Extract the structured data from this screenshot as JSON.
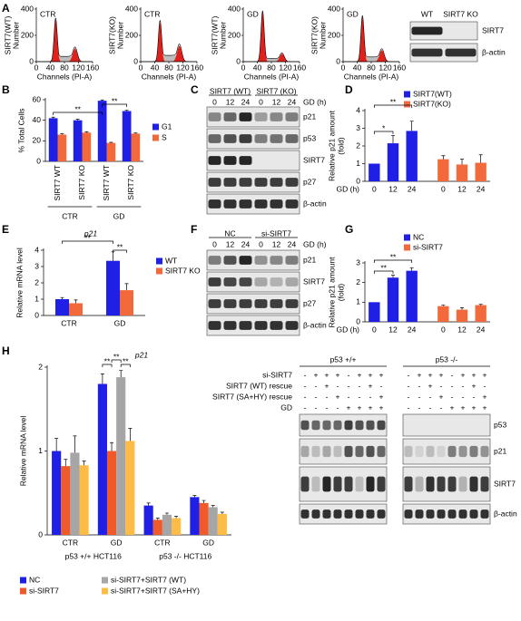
{
  "panel_labels": [
    "A",
    "B",
    "C",
    "D",
    "E",
    "F",
    "G",
    "H"
  ],
  "histograms": [
    {
      "condition": "CTR",
      "ylabel": [
        "SIRT7(WT)",
        "Number"
      ],
      "xlabel": "Channels (PI-A)",
      "xticks": [
        0,
        40,
        80,
        120,
        160
      ],
      "yticks": [
        0,
        200,
        400
      ]
    },
    {
      "condition": "CTR",
      "ylabel": [
        "SIRT7(KO)",
        "Number"
      ],
      "xlabel": "Channels (PI-A)",
      "xticks": [
        0,
        40,
        80,
        120,
        160
      ],
      "yticks": [
        0,
        200,
        400
      ]
    },
    {
      "condition": "GD",
      "ylabel": [
        "SIRT7(WT)",
        "Number"
      ],
      "xlabel": "Channels (PI-A)",
      "xticks": [
        0,
        40,
        80,
        120,
        160
      ],
      "yticks": [
        0,
        200,
        400
      ]
    },
    {
      "condition": "GD",
      "ylabel": [
        "SIRT7(KO)",
        "Number"
      ],
      "xlabel": "Channels (PI-A)",
      "xticks": [
        0,
        40,
        80,
        120,
        160
      ],
      "yticks": [
        0,
        200,
        400
      ]
    }
  ],
  "blot_a": {
    "lanes": [
      "WT",
      "SIRT7 KO"
    ],
    "rows": [
      "SIRT7",
      "β-actin"
    ]
  },
  "blot_c": {
    "groups": [
      "SIRT7 (WT)",
      "SIRT7 (KO)"
    ],
    "lanes": [
      0,
      12,
      24,
      0,
      12,
      24
    ],
    "axis_label": "GD (h)",
    "rows": [
      "p21",
      "p53",
      "SIRT7",
      "p27",
      "β-actin"
    ]
  },
  "blot_f": {
    "groups": [
      "NC",
      "si-SIRT7"
    ],
    "lanes": [
      0,
      12,
      24,
      0,
      12,
      24
    ],
    "axis_label": "GD (h)",
    "rows": [
      "p21",
      "SIRT7",
      "p27",
      "β-actin"
    ]
  },
  "blot_h": {
    "groups": [
      "p53 +/+",
      "p53 -/-"
    ],
    "conditions": [
      {
        "label": "si-SIRT7",
        "signs": [
          "-",
          "+",
          "+",
          "+",
          "-",
          "+",
          "+",
          "+",
          "-",
          "+",
          "+",
          "+",
          "-",
          "+",
          "+",
          "+"
        ]
      },
      {
        "label": "SIRT7 (WT) rescue",
        "signs": [
          "-",
          "-",
          "+",
          "-",
          "-",
          "-",
          "+",
          "-",
          "-",
          "-",
          "+",
          "-",
          "-",
          "-",
          "+",
          "-"
        ]
      },
      {
        "label": "SIRT7 (SA+HY) rescue",
        "signs": [
          "-",
          "-",
          "-",
          "+",
          "-",
          "-",
          "-",
          "+",
          "-",
          "-",
          "-",
          "+",
          "-",
          "-",
          "-",
          "+"
        ]
      },
      {
        "label": "GD",
        "signs": [
          "-",
          "-",
          "-",
          "-",
          "+",
          "+",
          "+",
          "+",
          "-",
          "-",
          "-",
          "-",
          "+",
          "+",
          "+",
          "+"
        ]
      }
    ],
    "rows": [
      "p53",
      "p21",
      "SIRT7",
      "β-actin"
    ]
  },
  "chart_data": [
    {
      "type": "bar",
      "ylabel": [
        "% Total Cells"
      ],
      "categories": [
        "SIRT7 WT",
        "SIRT7 KO",
        "SIRT7 WT",
        "SIRT7 KO"
      ],
      "groups": [
        "CTR",
        "GD"
      ],
      "ylim": [
        0,
        60
      ],
      "yticks": [
        0,
        20,
        40,
        60
      ],
      "annotations": [
        "**",
        "**"
      ],
      "series": [
        {
          "name": "G1",
          "color": "#1f1fe6",
          "values": [
            42,
            40,
            59,
            49
          ],
          "errors": [
            1,
            1,
            0.8,
            0.8
          ]
        },
        {
          "name": "S",
          "color": "#f26a3c",
          "values": [
            26,
            28,
            18,
            27
          ],
          "errors": [
            0.8,
            0.8,
            0.5,
            0.6
          ]
        }
      ]
    },
    {
      "type": "bar",
      "ylabel": [
        "Relative p21 amount",
        "(fold)"
      ],
      "xlabel": "GD (h)",
      "categories": [
        "0",
        "12",
        "24",
        "0",
        "12",
        "24"
      ],
      "ylim": [
        0,
        4
      ],
      "yticks": [
        0,
        1,
        2,
        3,
        4
      ],
      "annotations": [
        "*",
        "**"
      ],
      "series": [
        {
          "name": "SIRT7(WT)",
          "color": "#1f1fe6",
          "values": [
            1,
            2.15,
            2.85,
            null,
            null,
            null
          ],
          "errors": [
            null,
            0.45,
            0.55,
            null,
            null,
            null
          ]
        },
        {
          "name": "SIRT7(KO)",
          "color": "#f26a3c",
          "values": [
            null,
            null,
            null,
            1.25,
            0.95,
            1.05
          ],
          "errors": [
            null,
            null,
            null,
            0.2,
            0.3,
            0.45
          ]
        }
      ]
    },
    {
      "type": "bar",
      "title": "p21",
      "ylabel": [
        "Relative mRNA level"
      ],
      "categories": [
        "CTR",
        "GD"
      ],
      "ylim": [
        0,
        4
      ],
      "yticks": [
        0,
        1,
        2,
        3,
        4
      ],
      "annotations": [
        "**",
        "**"
      ],
      "series": [
        {
          "name": "WT",
          "color": "#1f1fe6",
          "values": [
            1.0,
            3.35
          ],
          "errors": [
            0.1,
            0.55
          ]
        },
        {
          "name": "SIRT7 KO",
          "color": "#f26a3c",
          "values": [
            0.75,
            1.55
          ],
          "errors": [
            0.2,
            0.4
          ]
        }
      ]
    },
    {
      "type": "bar",
      "ylabel": [
        "Relative p21 amount",
        "(fold)"
      ],
      "xlabel": "GD (h)",
      "categories": [
        "0",
        "12",
        "24",
        "0",
        "12",
        "24"
      ],
      "ylim": [
        0,
        3
      ],
      "yticks": [
        0,
        1,
        2,
        3
      ],
      "annotations": [
        "**",
        "**"
      ],
      "series": [
        {
          "name": "NC",
          "color": "#1f1fe6",
          "values": [
            1,
            2.25,
            2.6,
            null,
            null,
            null
          ],
          "errors": [
            null,
            0.12,
            0.15,
            null,
            null,
            null
          ]
        },
        {
          "name": "si-SIRT7",
          "color": "#f26a3c",
          "values": [
            null,
            null,
            null,
            0.8,
            0.62,
            0.85
          ],
          "errors": [
            null,
            null,
            null,
            0.05,
            0.1,
            0.04
          ]
        }
      ]
    },
    {
      "type": "bar",
      "title": "p21",
      "ylabel": [
        "Relative mRNA level"
      ],
      "categories": [
        "CTR",
        "GD",
        "CTR",
        "GD"
      ],
      "groups": [
        "p53 +/+ HCT116",
        "p53 -/- HCT116"
      ],
      "ylim": [
        0,
        2
      ],
      "yticks": [
        0,
        1,
        2
      ],
      "annotations": [
        "**",
        "**",
        "**"
      ],
      "series": [
        {
          "name": "NC",
          "color": "#1f1fe6",
          "values": [
            1.0,
            1.8,
            0.35,
            0.45
          ],
          "errors": [
            0.15,
            0.12,
            0.03,
            0.02
          ]
        },
        {
          "name": "si-SIRT7",
          "color": "#f05a2a",
          "values": [
            0.82,
            1.0,
            0.18,
            0.38
          ],
          "errors": [
            0.08,
            0.1,
            0.02,
            0.03
          ]
        },
        {
          "name": "si-SIRT7+SIRT7 (WT)",
          "color": "#a6a6a6",
          "values": [
            0.98,
            1.88,
            0.24,
            0.33
          ],
          "errors": [
            0.2,
            0.08,
            0.02,
            0.02
          ]
        },
        {
          "name": "si-SIRT7+SIRT7 (SA+HY)",
          "color": "#fcbc45",
          "values": [
            0.83,
            1.12,
            0.2,
            0.25
          ],
          "errors": [
            0.05,
            0.15,
            0.02,
            0.02
          ]
        }
      ]
    }
  ]
}
